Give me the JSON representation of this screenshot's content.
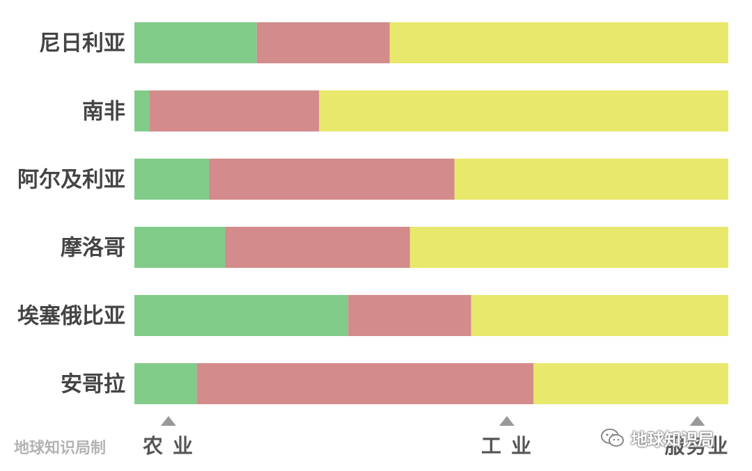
{
  "chart_data": {
    "type": "bar",
    "orientation": "horizontal",
    "stacked": true,
    "categories": [
      "尼日利亚",
      "南非",
      "阿尔及利亚",
      "摩洛哥",
      "埃塞俄比亚",
      "安哥拉"
    ],
    "series": [
      {
        "name": "农 业",
        "color": "#82cc8a",
        "values": [
          20.6,
          2.5,
          12.6,
          15.3,
          36.0,
          10.5
        ]
      },
      {
        "name": "工 业",
        "color": "#d38b8b",
        "values": [
          22.4,
          28.6,
          41.3,
          31.1,
          20.7,
          56.7
        ]
      },
      {
        "name": "服务业",
        "color": "#e8e86c",
        "values": [
          57.0,
          68.9,
          46.1,
          53.6,
          43.3,
          32.8
        ]
      }
    ],
    "xlim": [
      0,
      100
    ],
    "grid": false,
    "legend": "bottom",
    "title": "",
    "xlabel": "",
    "ylabel": ""
  },
  "credit": "地球知识局制",
  "watermark": "地球知识局"
}
